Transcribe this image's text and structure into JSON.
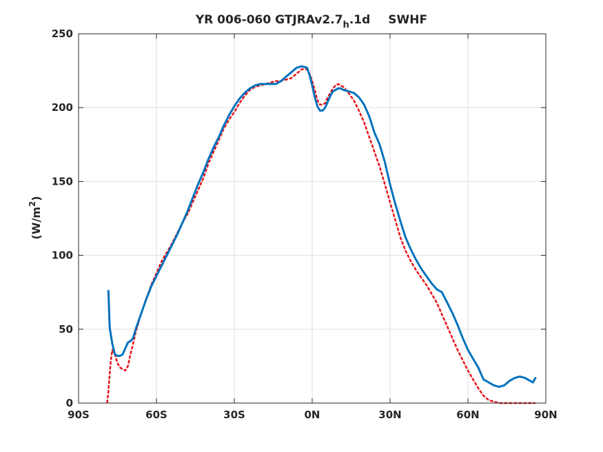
{
  "chart_data": {
    "type": "line",
    "title": "YR 006-060 GTJRAv2.7",
    "title_subscript": "h",
    "title_suffix": ".1d",
    "title_right": "SWHF",
    "ylabel": "(W/m",
    "ylabel_superscript": "2",
    "ylabel_close": ")",
    "xlim": [
      -90,
      90
    ],
    "ylim": [
      0,
      250
    ],
    "grid": true,
    "x_ticks": [
      -90,
      -60,
      -30,
      0,
      30,
      60,
      90
    ],
    "x_tick_labels": [
      "90S",
      "60S",
      "30S",
      "0N",
      "30N",
      "60N",
      "90N"
    ],
    "y_ticks": [
      0,
      50,
      100,
      150,
      200,
      250
    ],
    "y_tick_labels": [
      "0",
      "50",
      "100",
      "150",
      "200",
      "250"
    ],
    "series": [
      {
        "color": "#0072BD",
        "style": "solid",
        "x": [
          -78.5,
          -78,
          -77,
          -76,
          -75,
          -74,
          -73,
          -72,
          -71,
          -70,
          -69,
          -68,
          -66,
          -64,
          -62,
          -60,
          -58,
          -56,
          -54,
          -52,
          -50,
          -48,
          -46,
          -44,
          -42,
          -40,
          -38,
          -36,
          -34,
          -32,
          -30,
          -28,
          -26,
          -24,
          -22,
          -20,
          -18,
          -16,
          -14,
          -12,
          -10,
          -8,
          -6,
          -4,
          -2,
          -1,
          0,
          1,
          2,
          3,
          4,
          5,
          6,
          7,
          8,
          9,
          10,
          11,
          12,
          14,
          16,
          18,
          20,
          22,
          24,
          26,
          28,
          30,
          32,
          34,
          36,
          38,
          40,
          42,
          44,
          46,
          48,
          50,
          52,
          54,
          56,
          58,
          60,
          62,
          64,
          65,
          66,
          68,
          70,
          72,
          74,
          76,
          78,
          80,
          82,
          84,
          85,
          86
        ],
        "y": [
          76,
          51,
          40,
          33,
          32,
          32,
          33,
          37,
          41,
          42,
          44,
          50,
          60,
          70,
          79,
          86,
          93,
          100,
          107,
          114,
          122,
          130,
          139,
          148,
          156,
          165,
          173,
          180,
          188,
          195,
          201,
          206,
          210,
          213,
          215,
          216,
          216,
          216,
          216,
          218,
          221,
          224,
          227,
          228,
          227,
          222,
          215,
          207,
          201,
          198,
          198,
          200,
          204,
          208,
          211,
          212,
          213,
          213,
          212,
          211,
          210,
          207,
          202,
          194,
          183,
          175,
          163,
          148,
          135,
          123,
          112,
          104,
          97,
          91,
          86,
          81,
          77,
          75,
          68,
          61,
          53,
          44,
          36,
          30,
          24,
          20,
          16,
          14,
          12,
          11,
          12,
          15,
          17,
          18,
          17,
          15,
          14,
          17
        ]
      },
      {
        "color": "#E8141B",
        "style": "dashed",
        "x": [
          -79,
          -78.5,
          -78,
          -77.5,
          -77,
          -76,
          -75,
          -74,
          -73,
          -72,
          -71,
          -70,
          -69,
          -68,
          -66,
          -64,
          -62,
          -60,
          -58,
          -56,
          -54,
          -52,
          -50,
          -48,
          -46,
          -44,
          -42,
          -40,
          -38,
          -36,
          -34,
          -32,
          -30,
          -28,
          -26,
          -24,
          -22,
          -20,
          -18,
          -16,
          -14,
          -12,
          -10,
          -8,
          -6,
          -4,
          -2,
          -1,
          0,
          1,
          2,
          3,
          4,
          5,
          6,
          7,
          8,
          9,
          10,
          11,
          12,
          14,
          16,
          18,
          20,
          22,
          24,
          26,
          28,
          30,
          32,
          34,
          36,
          38,
          40,
          42,
          44,
          46,
          48,
          50,
          52,
          54,
          56,
          58,
          60,
          62,
          64,
          66,
          68,
          70,
          72,
          74,
          76,
          78,
          80,
          82,
          84,
          85,
          86
        ],
        "y": [
          0,
          8,
          20,
          30,
          36,
          33,
          27,
          24,
          23,
          22,
          25,
          33,
          40,
          48,
          60,
          70,
          80,
          88,
          96,
          102,
          108,
          115,
          122,
          128,
          136,
          144,
          152,
          162,
          170,
          178,
          186,
          192,
          197,
          203,
          208,
          212,
          214,
          215,
          216,
          217,
          218,
          218,
          219,
          220,
          223,
          226,
          226,
          223,
          218,
          212,
          205,
          202,
          202,
          203,
          207,
          210,
          213,
          215,
          216,
          215,
          214,
          210,
          205,
          198,
          190,
          180,
          170,
          160,
          148,
          136,
          124,
          112,
          103,
          96,
          90,
          85,
          80,
          74,
          68,
          60,
          52,
          44,
          36,
          29,
          22,
          16,
          10,
          5,
          2,
          1,
          0,
          0,
          0,
          0,
          0,
          0,
          0,
          0,
          0
        ]
      }
    ]
  },
  "colors": {
    "axis": "#262626",
    "grid": "#dfdfdf"
  }
}
